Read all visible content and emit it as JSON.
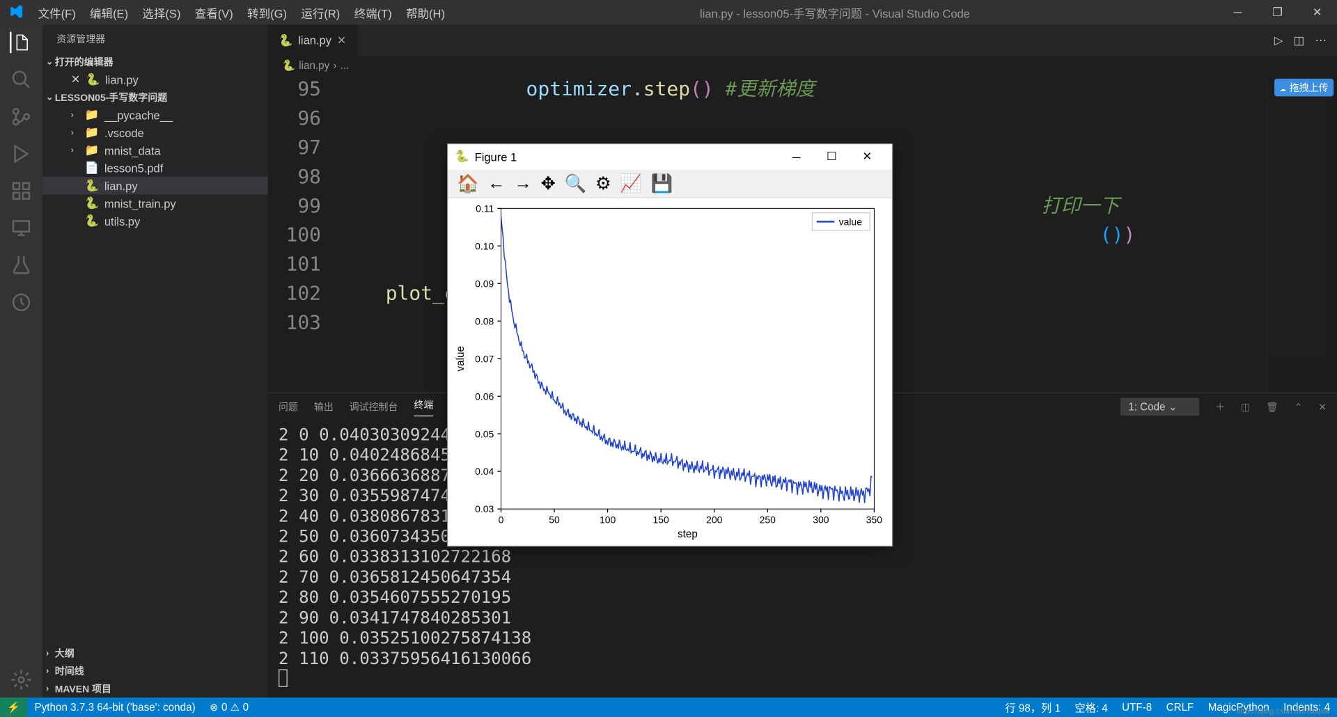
{
  "titlebar": {
    "menus": [
      "文件(F)",
      "编辑(E)",
      "选择(S)",
      "查看(V)",
      "转到(G)",
      "运行(R)",
      "终端(T)",
      "帮助(H)"
    ],
    "title": "lian.py - lesson05-手写数字问题 - Visual Studio Code"
  },
  "sidebar": {
    "header": "资源管理器",
    "sections": {
      "open_editors": "打开的编辑器",
      "project": "LESSON05-手写数字问题",
      "outline": "大纲",
      "timeline": "时间线",
      "maven": "MAVEN 项目"
    },
    "open_files": [
      {
        "name": "lian.py",
        "icon": "🐍"
      }
    ],
    "tree": [
      {
        "name": "__pycache__",
        "type": "folder",
        "icon": "📁",
        "depth": 1
      },
      {
        "name": ".vscode",
        "type": "folder",
        "icon": "📁",
        "depth": 1
      },
      {
        "name": "mnist_data",
        "type": "folder",
        "icon": "📁",
        "depth": 1
      },
      {
        "name": "lesson5.pdf",
        "type": "file",
        "icon": "📄",
        "depth": 1,
        "color": "#e2524c"
      },
      {
        "name": "lian.py",
        "type": "file",
        "icon": "🐍",
        "depth": 1,
        "active": true
      },
      {
        "name": "mnist_train.py",
        "type": "file",
        "icon": "🐍",
        "depth": 1
      },
      {
        "name": "utils.py",
        "type": "file",
        "icon": "🐍",
        "depth": 1
      }
    ]
  },
  "tabs": {
    "items": [
      {
        "name": "lian.py",
        "icon": "🐍"
      }
    ]
  },
  "breadcrumb": [
    {
      "icon": "🐍",
      "text": "lian.py"
    },
    {
      "text": "..."
    }
  ],
  "code": {
    "start_line": 95,
    "lines": [
      {
        "indent": "                ",
        "tokens": [
          {
            "t": "optimizer",
            "c": "c-var"
          },
          {
            "t": ".",
            "c": "c-punc"
          },
          {
            "t": "step",
            "c": "c-fn"
          },
          {
            "t": "(",
            "c": "c-paren"
          },
          {
            "t": ")",
            "c": "c-paren"
          },
          {
            "t": " #更新梯度",
            "c": "c-cmt"
          }
        ]
      },
      {
        "indent": "",
        "tokens": []
      },
      {
        "indent": "",
        "tokens": []
      },
      {
        "indent": "",
        "tokens": []
      },
      {
        "indent": "",
        "tokens": [
          {
            "t": "                                                            打印一下",
            "c": "c-cmt"
          }
        ]
      },
      {
        "indent": "",
        "tokens": [
          {
            "t": "                                                                 (",
            "c": "c-paren2"
          },
          {
            "t": ")",
            "c": "c-paren2"
          },
          {
            "t": ")",
            "c": "c-paren"
          }
        ]
      },
      {
        "indent": "",
        "tokens": []
      },
      {
        "indent": "    ",
        "tokens": [
          {
            "t": "plot_cur",
            "c": "c-fn"
          }
        ]
      },
      {
        "indent": "",
        "tokens": []
      }
    ]
  },
  "panel": {
    "tabs": [
      "问题",
      "输出",
      "调试控制台",
      "终端"
    ],
    "active_tab": 3,
    "terminal_selector": "1: Code",
    "lines": [
      "2 0 0.040303092449",
      "2 10 0.04024868458",
      "2 20 0.03666368871",
      "2 30 0.03559874743",
      "2 40 0.03808678314",
      "2 50 0.03607343509",
      "2 60 0.0338313102722168",
      "2 70 0.0365812450647354",
      "2 80 0.0354607555270195",
      "2 90 0.0341747840285301",
      "2 100 0.0352510027587413​8",
      "2 110 0.0337595641613006​6"
    ]
  },
  "statusbar": {
    "python": "Python 3.7.3 64-bit ('base': conda)",
    "errors": "⊗ 0 ⚠ 0",
    "pos": "行 98，列 1",
    "spaces": "空格: 4",
    "encoding": "UTF-8",
    "eol": "CRLF",
    "lang": "MagicPython",
    "indents": "Indents: 4"
  },
  "figure": {
    "title": "Figure 1",
    "toolbar_icons": [
      "🏠",
      "←",
      "→",
      "✥",
      "🔍",
      "⚙",
      "📈",
      "💾"
    ],
    "chart": {
      "type": "line",
      "xlabel": "step",
      "ylabel": "value",
      "legend_label": "value",
      "line_color": "#1f41d0",
      "bg": "#ffffff",
      "xlim": [
        0,
        350
      ],
      "ylim": [
        0.03,
        0.11
      ],
      "xticks": [
        0,
        50,
        100,
        150,
        200,
        250,
        300,
        350
      ],
      "yticks": [
        0.03,
        0.04,
        0.05,
        0.06,
        0.07,
        0.08,
        0.09,
        0.1,
        0.11
      ],
      "data": [
        [
          0,
          0.108
        ],
        [
          2,
          0.102
        ],
        [
          4,
          0.095
        ],
        [
          6,
          0.09
        ],
        [
          8,
          0.086
        ],
        [
          10,
          0.083
        ],
        [
          12,
          0.08
        ],
        [
          15,
          0.077
        ],
        [
          18,
          0.074
        ],
        [
          22,
          0.071
        ],
        [
          26,
          0.069
        ],
        [
          30,
          0.067
        ],
        [
          35,
          0.064
        ],
        [
          40,
          0.062
        ],
        [
          45,
          0.061
        ],
        [
          50,
          0.059
        ],
        [
          55,
          0.058
        ],
        [
          60,
          0.056
        ],
        [
          65,
          0.055
        ],
        [
          70,
          0.054
        ],
        [
          75,
          0.053
        ],
        [
          80,
          0.052
        ],
        [
          85,
          0.051
        ],
        [
          90,
          0.05
        ],
        [
          95,
          0.049
        ],
        [
          100,
          0.048
        ],
        [
          110,
          0.047
        ],
        [
          120,
          0.046
        ],
        [
          130,
          0.045
        ],
        [
          140,
          0.044
        ],
        [
          150,
          0.043
        ],
        [
          160,
          0.043
        ],
        [
          170,
          0.042
        ],
        [
          180,
          0.041
        ],
        [
          190,
          0.041
        ],
        [
          200,
          0.04
        ],
        [
          210,
          0.04
        ],
        [
          220,
          0.039
        ],
        [
          230,
          0.039
        ],
        [
          240,
          0.038
        ],
        [
          250,
          0.038
        ],
        [
          260,
          0.037
        ],
        [
          270,
          0.037
        ],
        [
          280,
          0.036
        ],
        [
          290,
          0.036
        ],
        [
          300,
          0.035
        ],
        [
          310,
          0.035
        ],
        [
          320,
          0.034
        ],
        [
          330,
          0.034
        ],
        [
          340,
          0.034
        ],
        [
          345,
          0.035
        ],
        [
          348,
          0.038
        ]
      ]
    }
  },
  "badge": {
    "text": "拖拽上传"
  },
  "watermark": "https://blog.csdn.net/hxxjxw"
}
